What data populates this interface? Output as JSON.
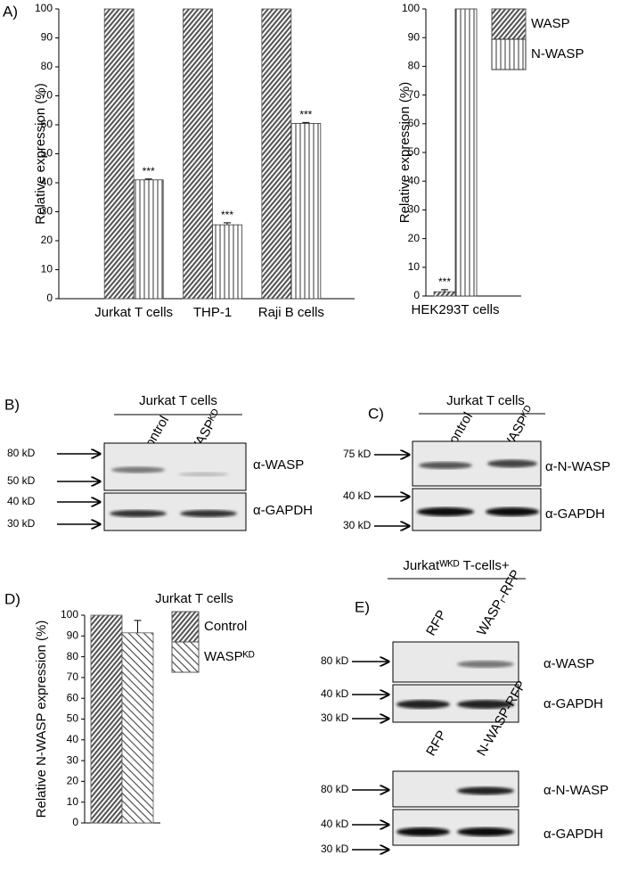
{
  "chart_data": [
    {
      "type": "bar",
      "panel": "A)",
      "ylabel": "Relative expression (%)",
      "categories": [
        "Jurkat T cells",
        "THP-1",
        "Raji B cells"
      ],
      "series": [
        {
          "name": "WASP",
          "color": "#555555",
          "hatch": "dense-diagonal",
          "values": [
            100,
            100,
            100
          ]
        },
        {
          "name": "N-WASP",
          "color": "#333333",
          "hatch": "vertical",
          "values": [
            41,
            25.5,
            60.5
          ],
          "errors": [
            0.3,
            0.7,
            0.3
          ],
          "significance": [
            "***",
            "***",
            "***"
          ]
        }
      ],
      "ylim": [
        0,
        100
      ],
      "yticks": [
        0,
        10,
        20,
        30,
        40,
        50,
        60,
        70,
        80,
        90,
        100
      ]
    },
    {
      "type": "bar",
      "ylabel": "Relative expression (%)",
      "categories": [
        "HEK293T cells"
      ],
      "series": [
        {
          "name": "WASP",
          "color": "#555555",
          "hatch": "dense-diagonal",
          "values": [
            1.5
          ],
          "errors": [
            0.7
          ],
          "significance": [
            "***"
          ]
        },
        {
          "name": "N-WASP",
          "color": "#333333",
          "hatch": "vertical",
          "values": [
            100
          ]
        }
      ],
      "ylim": [
        0,
        100
      ],
      "yticks": [
        0,
        10,
        20,
        30,
        40,
        50,
        60,
        70,
        80,
        90,
        100
      ],
      "legend": "right"
    },
    {
      "type": "bar",
      "panel": "D)",
      "title": "Jurkat T cells",
      "ylabel": "Relative N-WASP expression (%)",
      "series": [
        {
          "name": "Control",
          "color": "#555555",
          "hatch": "dense-diagonal",
          "values": [
            100
          ]
        },
        {
          "name": "WASPᴷᴰ",
          "color": "#555555",
          "hatch": "sparse-diagonal",
          "values": [
            91.5
          ],
          "errors": [
            6
          ]
        }
      ],
      "ylim": [
        0,
        100
      ],
      "yticks": [
        0,
        10,
        20,
        30,
        40,
        50,
        60,
        70,
        80,
        90,
        100
      ],
      "legend": "right"
    }
  ],
  "blots": {
    "B": {
      "panel": "B)",
      "title": "Jurkat T cells",
      "lanes": [
        "Control",
        "WASPᴷᴰ"
      ],
      "markers": [
        "80 kD",
        "50 kD",
        "40 kD",
        "30 kD"
      ],
      "antibodies": [
        "α-WASP",
        "α-GAPDH"
      ]
    },
    "C": {
      "panel": "C)",
      "title": "Jurkat T cells",
      "lanes": [
        "Control",
        "WASPᴷᴰ"
      ],
      "markers": [
        "75 kD",
        "40 kD",
        "30 kD"
      ],
      "antibodies": [
        "α-N-WASP",
        "α-GAPDH"
      ]
    },
    "E": {
      "panel": "E)",
      "title": "Jurkatᵂᴷᴰ T-cells+",
      "top": {
        "lanes": [
          "RFP",
          "WASPᵣ-RFP"
        ],
        "markers": [
          "80 kD",
          "40 kD",
          "30 kD"
        ],
        "antibodies": [
          "α-WASP",
          "α-GAPDH"
        ]
      },
      "bottom": {
        "lanes": [
          "RFP",
          "N-WASP-RFP"
        ],
        "markers": [
          "80 kD",
          "40 kD",
          "30 kD"
        ],
        "antibodies": [
          "α-N-WASP",
          "α-GAPDH"
        ]
      }
    }
  }
}
